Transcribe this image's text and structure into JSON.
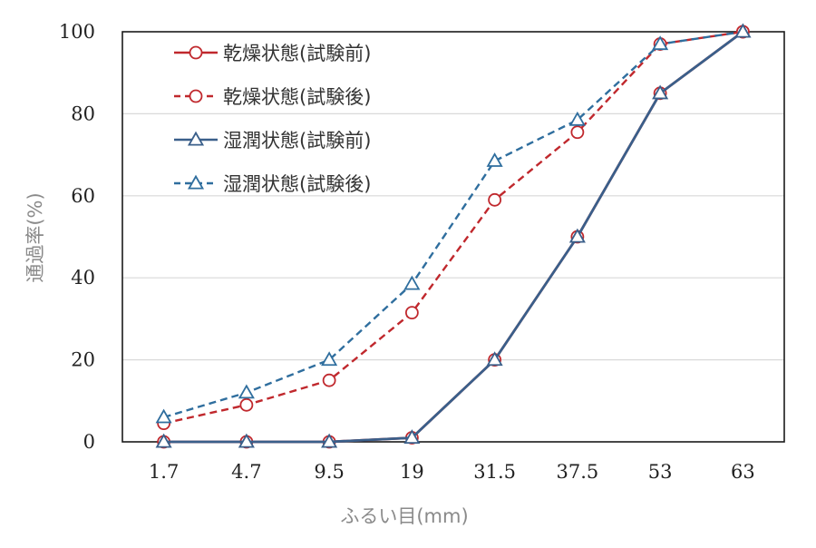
{
  "chart_data": {
    "type": "line",
    "title": "",
    "xlabel": "ふるい目(mm)",
    "ylabel": "通過率(%)",
    "categories": [
      "1.7",
      "4.7",
      "9.5",
      "19",
      "31.5",
      "37.5",
      "53",
      "63"
    ],
    "ylim": [
      0,
      100
    ],
    "yticks": [
      "0",
      "20",
      "40",
      "60",
      "80",
      "100"
    ],
    "grid": true,
    "legend_position": "top-left",
    "series": [
      {
        "name": "乾燥状態(試験前)",
        "values": [
          0,
          0,
          0,
          1,
          20,
          50,
          85,
          100
        ],
        "color": "#c0282d",
        "marker": "circle",
        "dashed": false
      },
      {
        "name": "乾燥状態(試験後)",
        "values": [
          4.5,
          9,
          15,
          31.5,
          59,
          75.5,
          97,
          100
        ],
        "color": "#c0282d",
        "marker": "circle",
        "dashed": true
      },
      {
        "name": "湿潤状態(試験前)",
        "values": [
          0,
          0,
          0,
          1,
          20,
          50,
          85,
          100
        ],
        "color": "#3a5f8a",
        "marker": "triangle",
        "dashed": false
      },
      {
        "name": "湿潤状態(試験後)",
        "values": [
          6,
          12,
          20,
          38.5,
          68.5,
          78.5,
          97,
          100
        ],
        "color": "#2f6e9e",
        "marker": "triangle",
        "dashed": true
      }
    ]
  }
}
